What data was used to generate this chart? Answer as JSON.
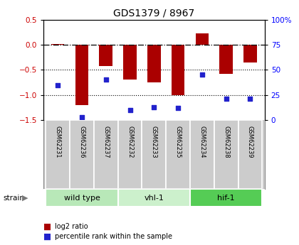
{
  "title": "GDS1379 / 8967",
  "samples": [
    "GSM62231",
    "GSM62236",
    "GSM62237",
    "GSM62232",
    "GSM62233",
    "GSM62235",
    "GSM62234",
    "GSM62238",
    "GSM62239"
  ],
  "log2_ratio": [
    0.02,
    -1.2,
    -0.42,
    -0.7,
    -0.75,
    -1.0,
    0.22,
    -0.58,
    -0.35
  ],
  "percentile": [
    35,
    3,
    40,
    10,
    13,
    12,
    45,
    21,
    21
  ],
  "groups": [
    {
      "label": "wild type",
      "start": 0,
      "end": 3,
      "color": "#b8e8b8"
    },
    {
      "label": "vhl-1",
      "start": 3,
      "end": 6,
      "color": "#ccf0cc"
    },
    {
      "label": "hif-1",
      "start": 6,
      "end": 9,
      "color": "#55cc55"
    }
  ],
  "bar_color": "#aa0000",
  "dot_color": "#2222cc",
  "ylim_left": [
    -1.5,
    0.5
  ],
  "ylim_right": [
    0,
    100
  ],
  "yticks_left": [
    -1.5,
    -1.0,
    -0.5,
    0.0,
    0.5
  ],
  "yticks_right": [
    0,
    25,
    50,
    75,
    100
  ],
  "ytick_labels_right": [
    "0",
    "25",
    "50",
    "75",
    "100%"
  ],
  "hline_y": 0.0,
  "dotted_lines": [
    -0.5,
    -1.0
  ],
  "background_color": "#ffffff",
  "sample_box_color": "#cccccc",
  "sample_box_border": "#888888"
}
